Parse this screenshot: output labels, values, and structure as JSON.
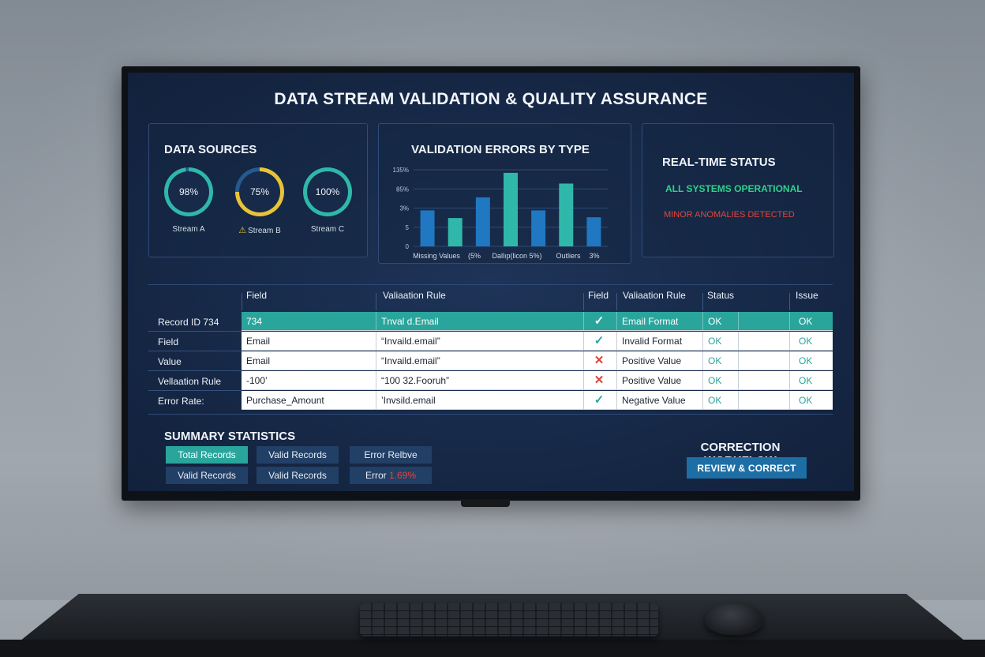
{
  "title": "DATA STREAM VALIDATION & QUALITY ASSURANCE",
  "sources": {
    "title": "DATA SOURCES",
    "items": [
      {
        "value": "98%",
        "label": "Stream A",
        "pct": 98,
        "color": "#2fb8aa",
        "warn": false
      },
      {
        "value": "75%",
        "label": "Stream B",
        "pct": 75,
        "color": "#e8c33a",
        "warn": true,
        "warn_icon": "⚠"
      },
      {
        "value": "100%",
        "label": "Stream C",
        "pct": 100,
        "color": "#2fb8aa",
        "warn": false
      }
    ]
  },
  "errors_chart": {
    "title": "VALIDATION ERRORS BY TYPE",
    "y_ticks": [
      "135%",
      "85%",
      "3%",
      "5",
      "0"
    ],
    "x_labels": [
      "Missing Values",
      "(5%",
      "Dallıp(licon 5%)",
      "Outliers",
      "3%"
    ]
  },
  "chart_data": {
    "type": "bar",
    "title": "VALIDATION ERRORS BY TYPE",
    "values": [
      0.47,
      0.37,
      0.64,
      0.96,
      0.47,
      0.82,
      0.38
    ],
    "colors": [
      "#1f78c1",
      "#2fb8aa",
      "#1f78c1",
      "#2fb8aa",
      "#1f78c1",
      "#2fb8aa",
      "#1f78c1"
    ],
    "ylim": [
      0,
      1
    ],
    "y_tick_labels": [
      "135%",
      "85%",
      "3%",
      "5",
      "0"
    ]
  },
  "status": {
    "title": "REAL-TIME STATUS",
    "ok_text": "ALL SYSTEMS OPERATIONAL",
    "ok_color": "#2fd18c",
    "warn_text": "MINOR ANOMALIES DETECTED",
    "warn_color": "#e0463e"
  },
  "table": {
    "headers": [
      "Field",
      "Valiaation Rule",
      "Field",
      "Valiaation Rule",
      "Status",
      "Issue"
    ],
    "row_heads": [
      "Record ID 734",
      "Field",
      "Value",
      "Vellaation Rule",
      "Error Rate:"
    ],
    "rows": [
      {
        "field": "734",
        "rule": "Tnval d.Email",
        "mark": "check",
        "rule2": "Email Format",
        "status": "OK",
        "issue": "OK"
      },
      {
        "field": "Email",
        "rule": "“Invaild.email”",
        "mark": "check",
        "rule2": "Invalid Format",
        "status": "OK",
        "issue": "OK"
      },
      {
        "field": "Email",
        "rule": "“Invaild.email”",
        "mark": "cross",
        "rule2": "Positive Value",
        "status": "OK",
        "issue": "OK"
      },
      {
        "field": "-100’",
        "rule": "“100 32.Fooruh”",
        "mark": "cross",
        "rule2": "Positive Value",
        "status": "OK",
        "issue": "OK"
      },
      {
        "field": "Purchase_Amount",
        "rule": "’Invsild.email",
        "mark": "check",
        "rule2": "Negative Value",
        "status": "OK",
        "issue": "OK"
      }
    ]
  },
  "summary": {
    "title": "SUMMARY STATISTICS",
    "b1": "Total Records",
    "b2": "Valid Records",
    "b3": "Error Relbve",
    "b4": "Valid Records",
    "b5": "Valid Records",
    "b6_label": "Error",
    "b6_value": "1.69%"
  },
  "workflow": {
    "title": "CORRECTION WORKFLOW",
    "button": "REVIEW & CORRECT"
  }
}
